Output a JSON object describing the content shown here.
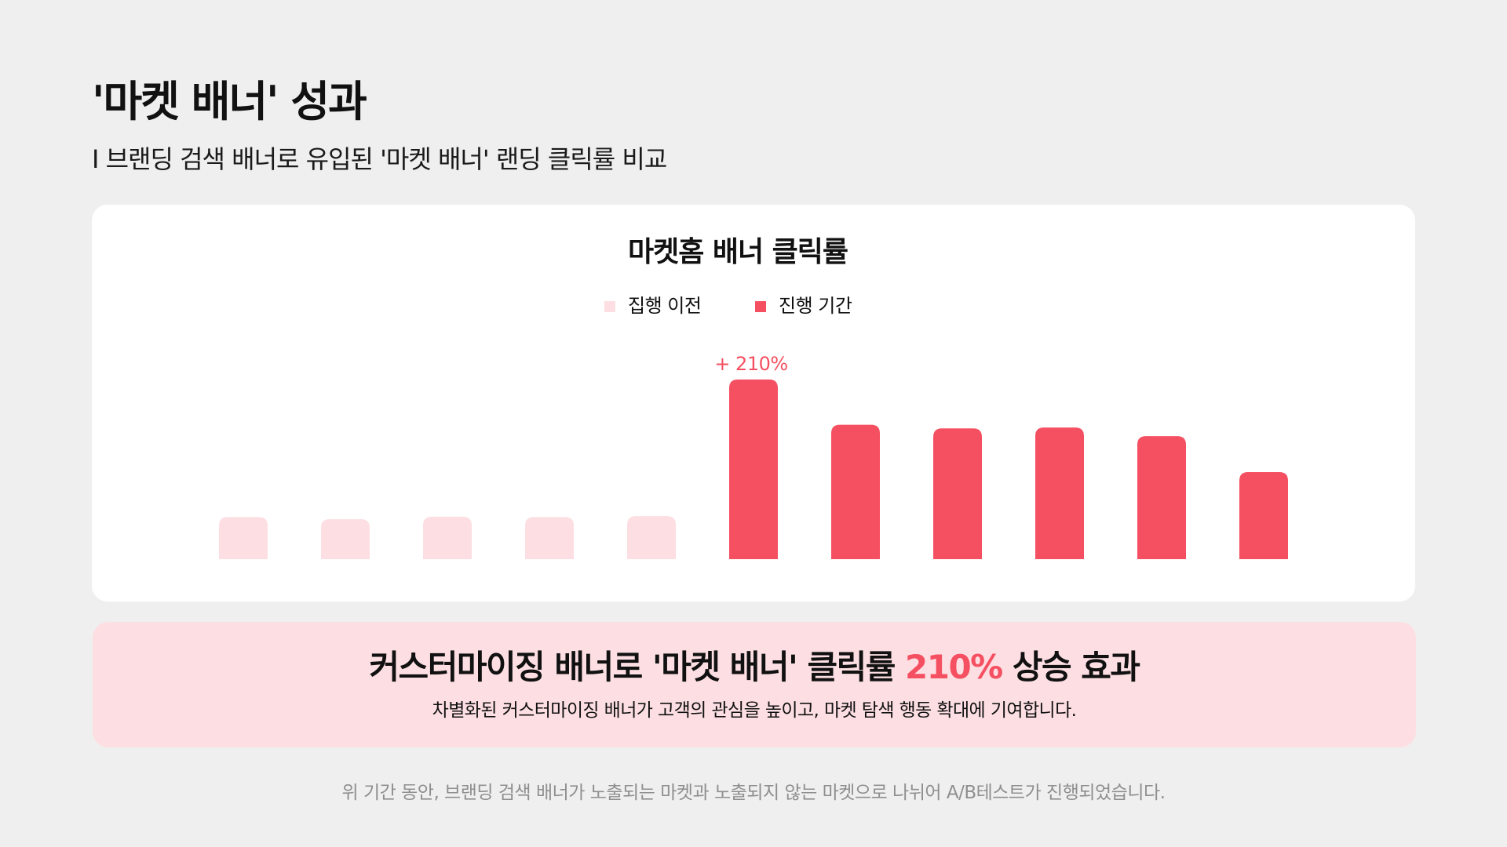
{
  "header": {
    "title": "'마켓 배너' 성과",
    "subtitle": "I 브랜딩 검색 배너로 유입된 '마켓 배너' 랜딩 클릭률 비교"
  },
  "colors": {
    "before": "#fddfe3",
    "during": "#f55061",
    "summary_background": "#fddfe3",
    "accent": "#f55061"
  },
  "chart_data": {
    "type": "bar",
    "title": "마켓홈 배너 클릭률",
    "legend_position": "top-center",
    "grid": false,
    "axes_visible": false,
    "series": [
      {
        "name": "집행 이전",
        "color": "#fddfe3",
        "values": [
          13.6,
          12.9,
          13.7,
          13.6,
          13.9
        ]
      },
      {
        "name": "진행 기간",
        "color": "#f55061",
        "values": [
          58.0,
          43.4,
          42.2,
          42.5,
          39.7,
          28.1
        ]
      }
    ],
    "annotations": [
      {
        "text": "+ 210%",
        "series": 1,
        "index": 0
      }
    ],
    "ylim": [
      0,
      60
    ]
  },
  "summary": {
    "headline_before": "커스터마이징 배너로 '마켓 배너' 클릭률 ",
    "headline_highlight": "210%",
    "headline_after": " 상승 효과",
    "description": "차별화된 커스터마이징 배너가 고객의 관심을 높이고, 마켓 탐색 행동 확대에 기여합니다."
  },
  "footnote": "위 기간 동안, 브랜딩 검색 배너가 노출되는 마켓과 노출되지 않는 마켓으로 나뉘어 A/B테스트가 진행되었습니다."
}
